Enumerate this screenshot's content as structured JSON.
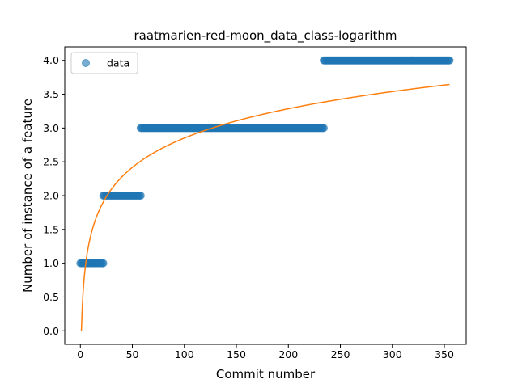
{
  "chart_data": {
    "type": "scatter",
    "title": "raatmarien-red-moon_data_class-logarithm",
    "xlabel": "Commit number",
    "ylabel": "Number of instance of a feature",
    "xlim": [
      -15,
      371
    ],
    "ylim": [
      -0.2,
      4.2
    ],
    "xticks": [
      0,
      50,
      100,
      150,
      200,
      250,
      300,
      350
    ],
    "yticks": [
      "0.0",
      "0.5",
      "1.0",
      "1.5",
      "2.0",
      "2.5",
      "3.0",
      "3.5",
      "4.0"
    ],
    "legend": {
      "position": "top-left",
      "entries": [
        "data"
      ]
    },
    "grid": false,
    "series": [
      {
        "name": "data",
        "kind": "scatter",
        "color": "#1f77b4",
        "segments": [
          {
            "x_start": 0,
            "x_end": 22,
            "y": 1.0
          },
          {
            "x_start": 22,
            "x_end": 58,
            "y": 2.0
          },
          {
            "x_start": 58,
            "x_end": 234,
            "y": 3.0
          },
          {
            "x_start": 234,
            "x_end": 355,
            "y": 4.0
          }
        ]
      },
      {
        "kind": "line",
        "color": "#ff7f0e",
        "model": "logarithmic",
        "x_range": [
          1,
          355
        ],
        "points": [
          [
            1,
            0.0
          ],
          [
            5,
            0.98
          ],
          [
            10,
            1.4
          ],
          [
            25,
            1.97
          ],
          [
            50,
            2.4
          ],
          [
            100,
            2.83
          ],
          [
            150,
            3.08
          ],
          [
            200,
            3.26
          ],
          [
            250,
            3.4
          ],
          [
            300,
            3.51
          ],
          [
            355,
            3.78
          ]
        ]
      }
    ]
  }
}
